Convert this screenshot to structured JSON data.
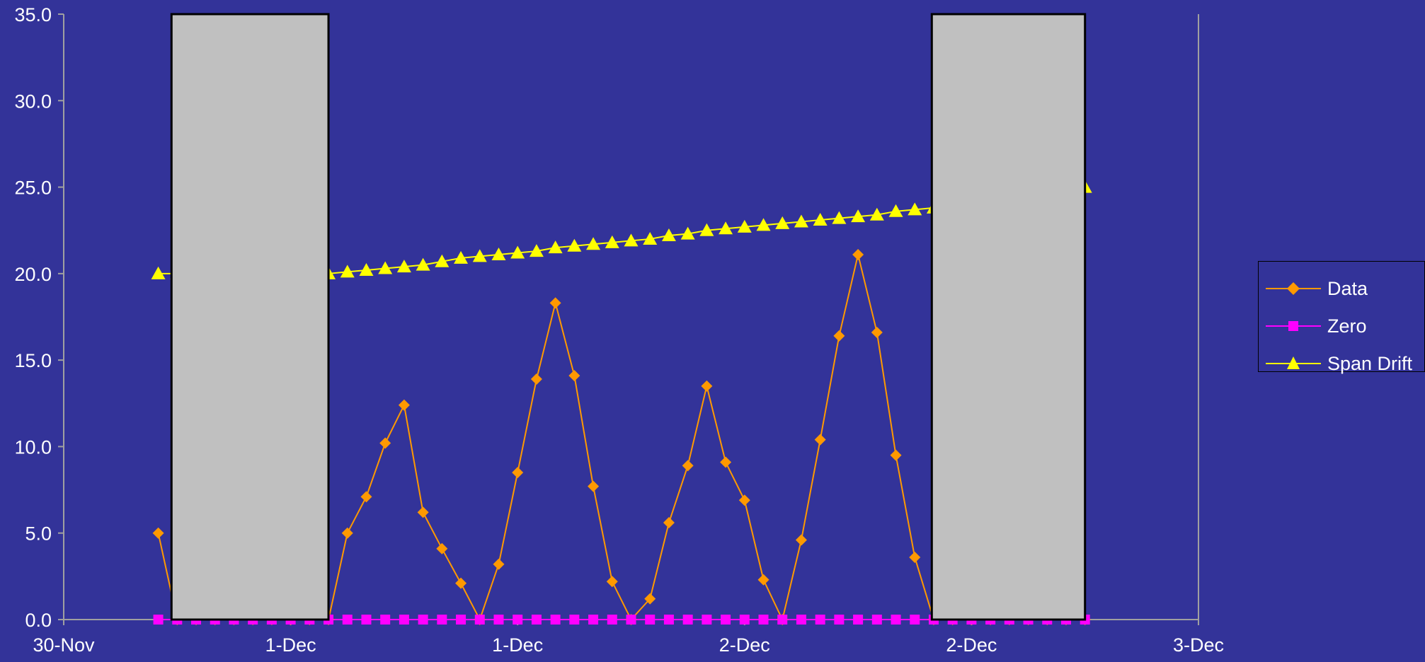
{
  "chart_data": {
    "type": "line",
    "title": "",
    "xlabel": "",
    "ylabel": "",
    "ylim": [
      0,
      35
    ],
    "yticks": [
      "0.0",
      "5.0",
      "10.0",
      "15.0",
      "20.0",
      "25.0",
      "30.0",
      "35.0"
    ],
    "xlim": [
      0,
      60
    ],
    "xtick_labels": [
      "30-Nov",
      "1-Dec",
      "1-Dec",
      "2-Dec",
      "2-Dec",
      "3-Dec"
    ],
    "shaded_regions": [
      {
        "x_start": 5.7,
        "x_end": 14.0
      },
      {
        "x_start": 45.9,
        "x_end": 54.0
      }
    ],
    "series": [
      {
        "name": "Data",
        "color": "#FF9900",
        "marker": "diamond",
        "x": [
          5,
          6,
          7,
          8,
          9,
          10,
          11,
          12,
          13,
          14,
          15,
          16,
          17,
          18,
          19,
          20,
          21,
          22,
          23,
          24,
          25,
          26,
          27,
          28,
          29,
          30,
          31,
          32,
          33,
          34,
          35,
          36,
          37,
          38,
          39,
          40,
          41,
          42,
          43,
          44,
          45,
          46,
          47,
          48,
          49,
          50,
          51,
          52,
          53,
          54
        ],
        "y": [
          5.0,
          0.0,
          0.0,
          0.0,
          0.0,
          0.0,
          0.0,
          0.0,
          0.0,
          0.0,
          5.0,
          7.1,
          10.2,
          12.4,
          6.2,
          4.1,
          2.1,
          0.0,
          3.2,
          8.5,
          13.9,
          18.3,
          14.1,
          7.7,
          2.2,
          0.0,
          1.2,
          5.6,
          8.9,
          13.5,
          9.1,
          6.9,
          2.3,
          0.0,
          4.6,
          10.4,
          16.4,
          21.1,
          16.6,
          9.5,
          3.6,
          0.0,
          0.0,
          0.0,
          0.0,
          0.0,
          0.0,
          0.0,
          0.0,
          0.0
        ]
      },
      {
        "name": "Zero",
        "color": "#FF00FF",
        "marker": "square",
        "x": [
          5,
          6,
          7,
          8,
          9,
          10,
          11,
          12,
          13,
          14,
          15,
          16,
          17,
          18,
          19,
          20,
          21,
          22,
          23,
          24,
          25,
          26,
          27,
          28,
          29,
          30,
          31,
          32,
          33,
          34,
          35,
          36,
          37,
          38,
          39,
          40,
          41,
          42,
          43,
          44,
          45,
          46,
          47,
          48,
          49,
          50,
          51,
          52,
          53,
          54
        ],
        "y": [
          0.0,
          0.0,
          0.0,
          0.0,
          0.0,
          0.0,
          0.0,
          0.0,
          0.0,
          0.0,
          0.0,
          0.0,
          0.0,
          0.0,
          0.0,
          0.0,
          0.0,
          0.0,
          0.0,
          0.0,
          0.0,
          0.0,
          0.0,
          0.0,
          0.0,
          0.0,
          0.0,
          0.0,
          0.0,
          0.0,
          0.0,
          0.0,
          0.0,
          0.0,
          0.0,
          0.0,
          0.0,
          0.0,
          0.0,
          0.0,
          0.0,
          0.0,
          0.0,
          0.0,
          0.0,
          0.0,
          0.0,
          0.0,
          0.0,
          0.0
        ]
      },
      {
        "name": "Span Drift",
        "color": "#FFFF00",
        "marker": "triangle",
        "x": [
          5,
          6,
          7,
          8,
          9,
          10,
          11,
          12,
          13,
          14,
          15,
          16,
          17,
          18,
          19,
          20,
          21,
          22,
          23,
          24,
          25,
          26,
          27,
          28,
          29,
          30,
          31,
          32,
          33,
          34,
          35,
          36,
          37,
          38,
          39,
          40,
          41,
          42,
          43,
          44,
          45,
          46,
          47,
          48,
          49,
          50,
          51,
          52,
          53,
          54
        ],
        "y": [
          20.0,
          20.0,
          20.0,
          20.0,
          20.0,
          20.0,
          20.0,
          20.0,
          20.0,
          20.0,
          20.1,
          20.2,
          20.3,
          20.4,
          20.5,
          20.7,
          20.9,
          21.0,
          21.1,
          21.2,
          21.3,
          21.5,
          21.6,
          21.7,
          21.8,
          21.9,
          22.0,
          22.2,
          22.3,
          22.5,
          22.6,
          22.7,
          22.8,
          22.9,
          23.0,
          23.1,
          23.2,
          23.3,
          23.4,
          23.6,
          23.7,
          23.8,
          23.9,
          24.0,
          24.1,
          24.3,
          24.5,
          24.6,
          24.8,
          25.0
        ]
      }
    ],
    "legend_position": "right",
    "grid": false
  },
  "colors": {
    "background": "#333399",
    "axis": "#A0A0A0",
    "shade": "#C0C0C0"
  }
}
